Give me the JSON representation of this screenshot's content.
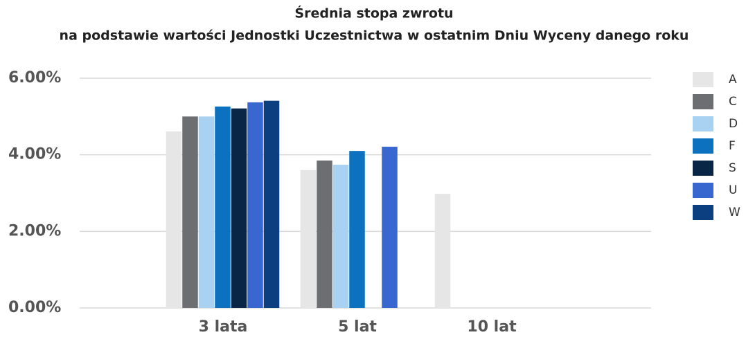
{
  "chart_data": {
    "type": "bar",
    "title": "Średnia stopa zwrotu",
    "subtitle": "na podstawie wartości Jednostki Uczestnictwa w ostatnim Dniu Wyceny danego roku",
    "categories": [
      "3 lata",
      "5 lat",
      "10 lat"
    ],
    "series": [
      {
        "name": "A",
        "color": "#e6e6e6",
        "values": [
          4.61,
          3.6,
          2.98
        ]
      },
      {
        "name": "C",
        "color": "#6d6e71",
        "values": [
          5.0,
          3.85,
          null
        ]
      },
      {
        "name": "D",
        "color": "#a9d1f1",
        "values": [
          5.0,
          3.74,
          null
        ]
      },
      {
        "name": "F",
        "color": "#0c72bf",
        "values": [
          5.26,
          4.1,
          null
        ]
      },
      {
        "name": "S",
        "color": "#0a2647",
        "values": [
          5.21,
          null,
          null
        ]
      },
      {
        "name": "U",
        "color": "#3867cf",
        "values": [
          5.37,
          4.21,
          null
        ]
      },
      {
        "name": "W",
        "color": "#0b3f80",
        "values": [
          5.41,
          null,
          null
        ]
      }
    ],
    "ylim": [
      0,
      6
    ],
    "yticks": [
      {
        "value": 0,
        "label": "0.00%"
      },
      {
        "value": 2,
        "label": "2.00%"
      },
      {
        "value": 4,
        "label": "4.00%"
      },
      {
        "value": 6,
        "label": "6.00%"
      }
    ],
    "grid": true,
    "legend": "right"
  }
}
